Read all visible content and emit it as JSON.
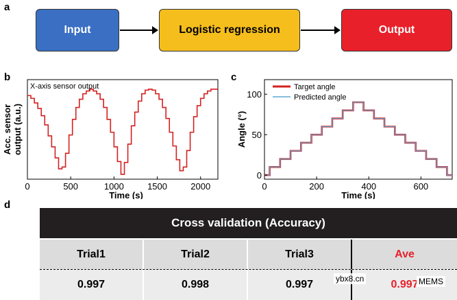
{
  "panels": {
    "a": "a",
    "b": "b",
    "c": "c",
    "d": "d"
  },
  "flow": {
    "input": {
      "label": "Input",
      "color": "#3a6fc4"
    },
    "model": {
      "label": "Logistic regression",
      "color": "#f5be1c"
    },
    "output": {
      "label": "Output",
      "color": "#e8202a"
    }
  },
  "chart_data": [
    {
      "type": "line",
      "title": "X-axis sensor output",
      "xlabel": "Time (s)",
      "ylabel": "Acc. sensor output (a.u.)",
      "xlim": [
        0,
        2200
      ],
      "xticks": [
        0,
        500,
        1000,
        1500,
        2000
      ],
      "series": [
        {
          "name": "X-axis sensor output",
          "color": "#d42020",
          "x": [
            0,
            40,
            80,
            120,
            160,
            200,
            240,
            280,
            320,
            360,
            400,
            440,
            480,
            520,
            560,
            600,
            640,
            680,
            720,
            760,
            800,
            840,
            880,
            920,
            960,
            1000,
            1040,
            1080,
            1120,
            1160,
            1200,
            1240,
            1280,
            1320,
            1360,
            1400,
            1440,
            1480,
            1520,
            1560,
            1600,
            1640,
            1680,
            1720,
            1760,
            1800,
            1840,
            1880,
            1920,
            1960,
            2000,
            2040,
            2080,
            2120,
            2160,
            2200
          ],
          "y": [
            0.88,
            0.85,
            0.8,
            0.74,
            0.66,
            0.56,
            0.44,
            0.32,
            0.2,
            0.08,
            0.1,
            0.25,
            0.45,
            0.62,
            0.75,
            0.84,
            0.9,
            0.93,
            0.95,
            0.93,
            0.9,
            0.84,
            0.75,
            0.62,
            0.48,
            0.32,
            0.16,
            0.02,
            0.15,
            0.35,
            0.55,
            0.7,
            0.82,
            0.9,
            0.94,
            0.95,
            0.94,
            0.9,
            0.84,
            0.75,
            0.63,
            0.48,
            0.33,
            0.18,
            0.06,
            0.1,
            0.28,
            0.48,
            0.65,
            0.77,
            0.85,
            0.9,
            0.93,
            0.95,
            0.95,
            0.95
          ]
        }
      ]
    },
    {
      "type": "line",
      "title": "",
      "xlabel": "Time (s)",
      "ylabel": "Angle (°)",
      "xlim": [
        0,
        720
      ],
      "ylim": [
        -5,
        118
      ],
      "xticks": [
        0,
        200,
        400,
        600
      ],
      "yticks": [
        0,
        50,
        100
      ],
      "legend": "top-left",
      "series": [
        {
          "name": "Target angle",
          "color": "#d42020",
          "x": [
            0,
            20,
            40,
            60,
            80,
            100,
            120,
            140,
            160,
            180,
            200,
            220,
            240,
            260,
            280,
            300,
            320,
            340,
            360,
            380,
            400,
            420,
            440,
            460,
            480,
            500,
            520,
            540,
            560,
            580,
            600,
            620,
            640,
            660,
            680,
            700,
            720
          ],
          "y": [
            0,
            10,
            10,
            20,
            20,
            30,
            30,
            40,
            40,
            50,
            50,
            60,
            60,
            70,
            70,
            80,
            80,
            90,
            90,
            80,
            80,
            70,
            70,
            60,
            60,
            50,
            50,
            40,
            40,
            30,
            30,
            20,
            20,
            10,
            10,
            0,
            0
          ]
        },
        {
          "name": "Predicted angle",
          "color": "#5fa8d3",
          "x": [
            0,
            20,
            40,
            60,
            80,
            100,
            120,
            140,
            160,
            180,
            200,
            220,
            240,
            260,
            280,
            300,
            320,
            340,
            360,
            380,
            400,
            420,
            440,
            460,
            480,
            500,
            520,
            540,
            560,
            580,
            600,
            620,
            640,
            660,
            680,
            700,
            720
          ],
          "y": [
            0,
            10,
            10,
            20,
            20,
            30,
            30,
            40,
            40,
            50,
            50,
            60,
            60,
            70,
            70,
            80,
            80,
            90,
            90,
            80,
            80,
            70,
            70,
            60,
            60,
            50,
            50,
            40,
            40,
            30,
            30,
            20,
            20,
            10,
            10,
            0,
            0
          ]
        }
      ]
    }
  ],
  "table": {
    "title": "Cross validation (Accuracy)",
    "headers": [
      "Trial1",
      "Trial2",
      "Trial3",
      "Ave"
    ],
    "values": [
      "0.997",
      "0.998",
      "0.997",
      "0.997"
    ],
    "ave_color": "#e8202a"
  },
  "watermark": {
    "site": "ybx8.cn",
    "brand": "MEMS"
  }
}
